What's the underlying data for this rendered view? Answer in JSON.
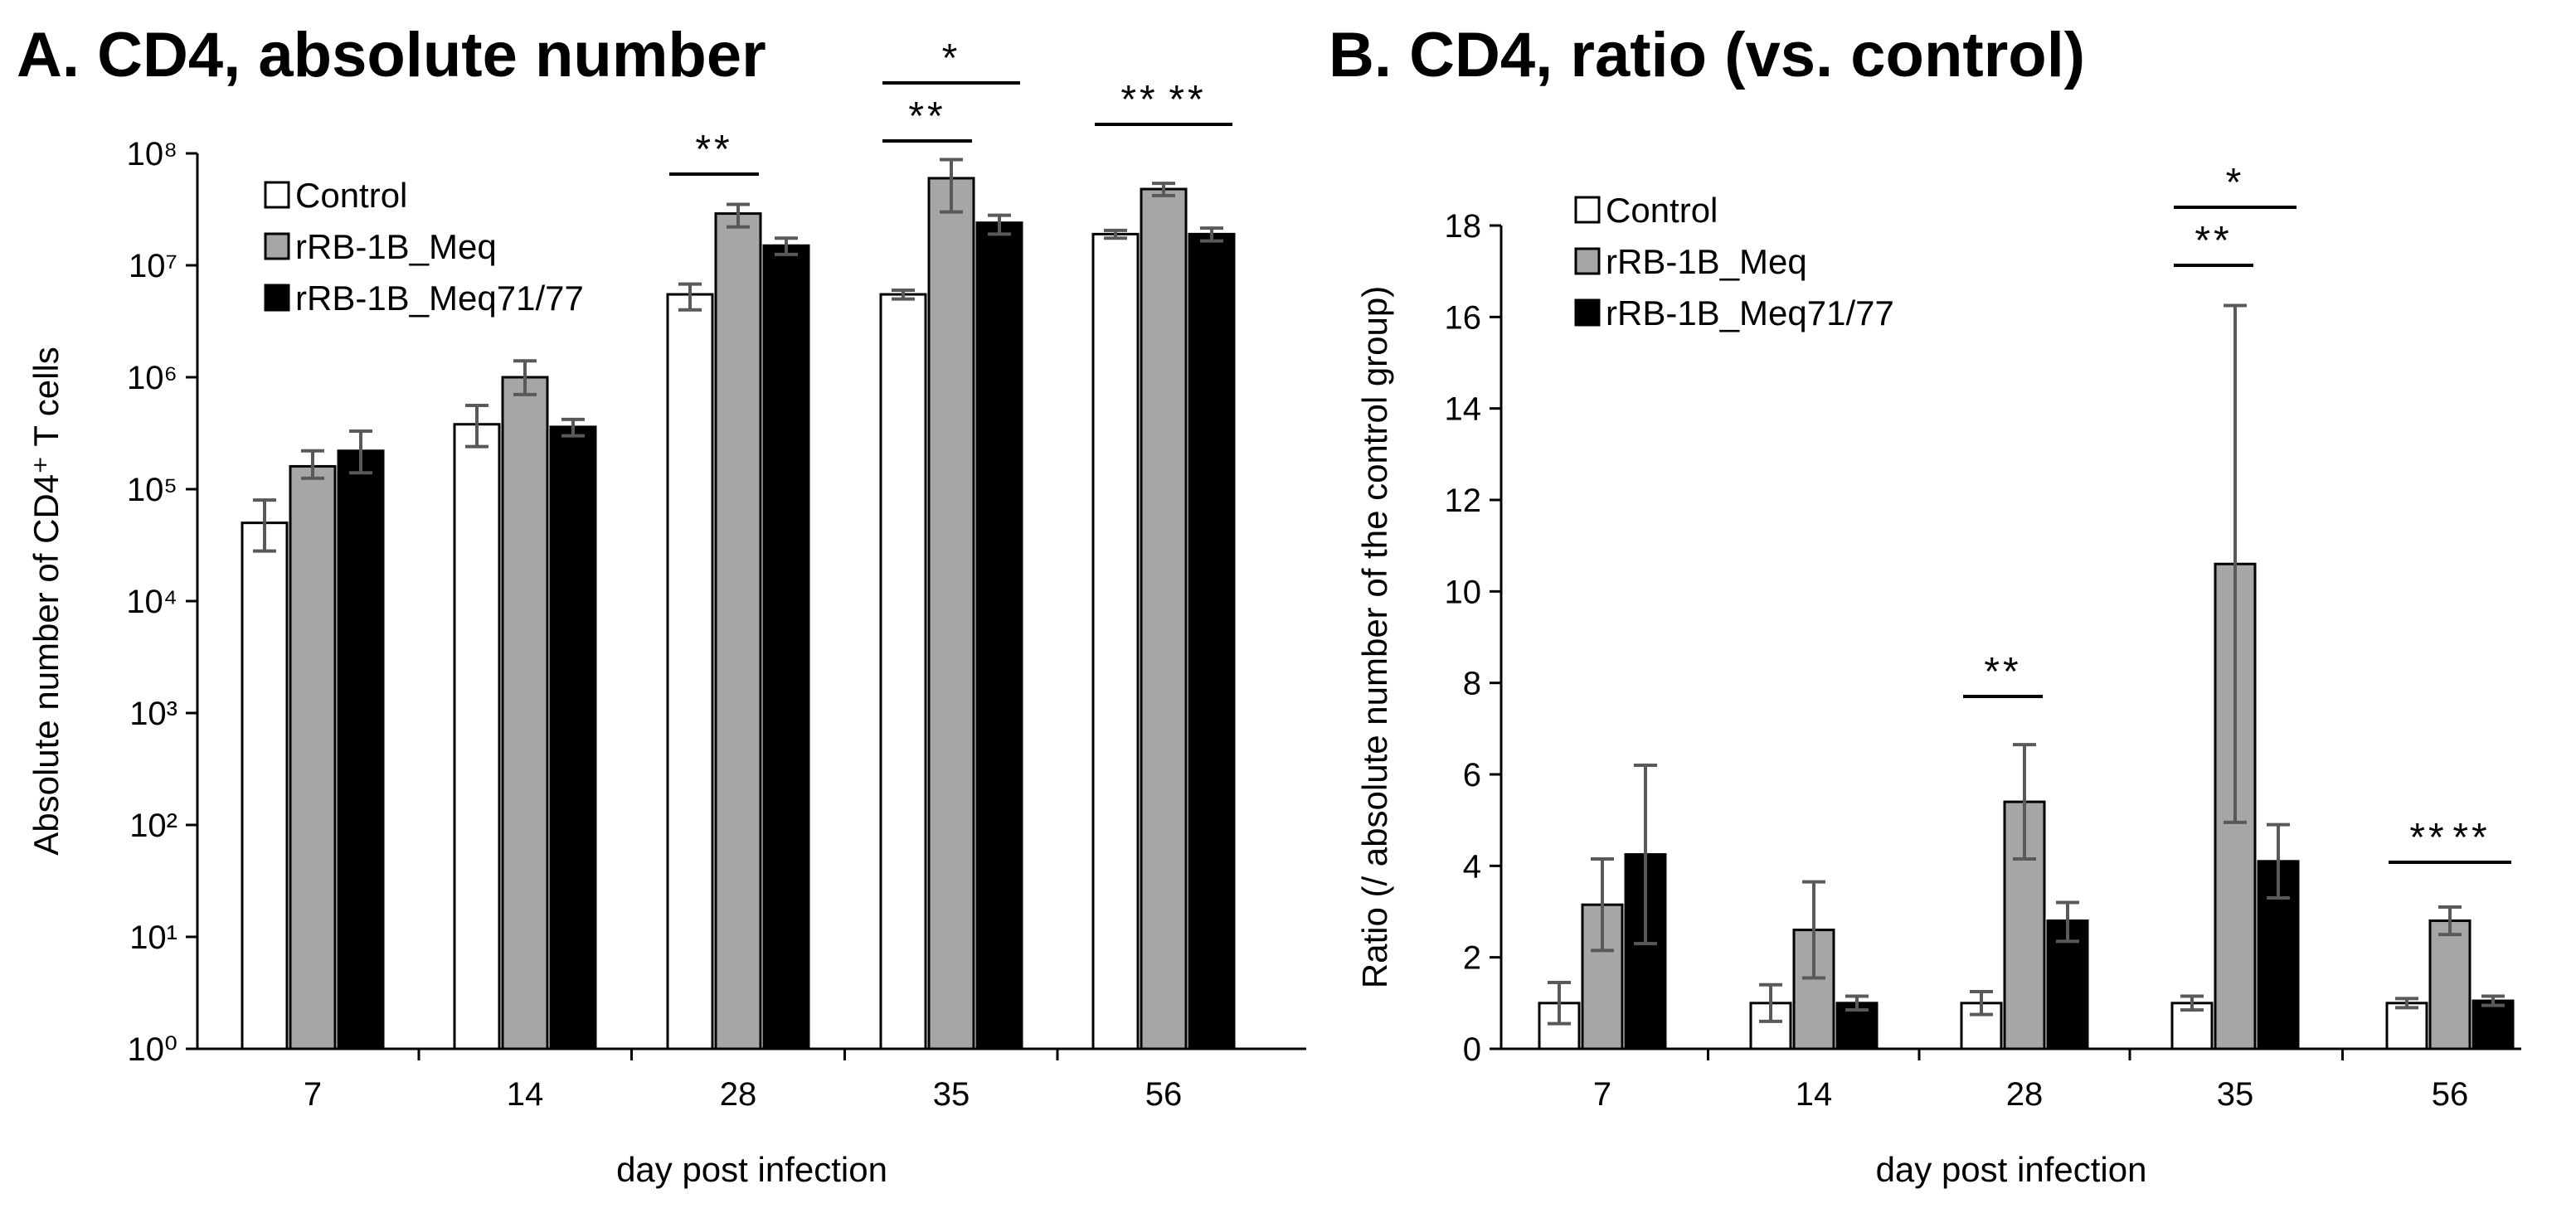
{
  "colors": {
    "control": "#ffffff",
    "meq": "#a6a6a6",
    "meq7177": "#000000",
    "axis": "#000000",
    "error": "#595959"
  },
  "chart_data": [
    {
      "type": "bar",
      "panel": "A",
      "title": "A. CD4, absolute number",
      "xlabel": "day post infection",
      "ylabel": "Absolute number of CD4⁺ T cells",
      "yscale": "log",
      "ylim": [
        1,
        100000000
      ],
      "ytick_labels": [
        "10⁰",
        "10¹",
        "10²",
        "10³",
        "10⁴",
        "10⁵",
        "10⁶",
        "10⁷",
        "10⁸"
      ],
      "categories": [
        "7",
        "14",
        "28",
        "35",
        "56"
      ],
      "legend": [
        "Control",
        "rRB-1B_Meq",
        "rRB-1B_Meq71/77"
      ],
      "legend_position": "top-left",
      "series": [
        {
          "name": "Control",
          "key": "control",
          "values": [
            50000,
            380000,
            5500000,
            5500000,
            19000000
          ],
          "err_low": [
            28000,
            240000,
            4000000,
            5000000,
            17500000
          ],
          "err_high": [
            80000,
            560000,
            6800000,
            6000000,
            20500000
          ]
        },
        {
          "name": "rRB-1B_Meq",
          "key": "meq",
          "values": [
            160000,
            1000000,
            29000000,
            60000000,
            48000000
          ],
          "err_low": [
            125000,
            700000,
            22000000,
            30000000,
            42000000
          ],
          "err_high": [
            220000,
            1400000,
            35000000,
            88000000,
            54000000
          ]
        },
        {
          "name": "rRB-1B_Meq71/77",
          "key": "meq7177",
          "values": [
            220000,
            360000,
            15000000,
            24000000,
            19000000
          ],
          "err_low": [
            140000,
            300000,
            12500000,
            19000000,
            16500000
          ],
          "err_high": [
            330000,
            420000,
            17500000,
            28000000,
            21500000
          ]
        }
      ],
      "significance": [
        {
          "label": "**",
          "category": "28",
          "from": "Control",
          "to": "rRB-1B_Meq",
          "level": 0
        },
        {
          "label": "**",
          "category": "35",
          "from": "Control",
          "to": "rRB-1B_Meq",
          "level": 0
        },
        {
          "label": "*",
          "category": "35",
          "from": "Control",
          "to": "rRB-1B_Meq71/77",
          "level": 1
        },
        {
          "label": "**",
          "category": "56",
          "from": "Control",
          "to": "rRB-1B_Meq",
          "level": 0
        },
        {
          "label": "**",
          "category": "56",
          "from": "rRB-1B_Meq",
          "to": "rRB-1B_Meq71/77",
          "level": 0
        }
      ]
    },
    {
      "type": "bar",
      "panel": "B",
      "title": "B. CD4, ratio (vs. control)",
      "xlabel": "day post infection",
      "ylabel": "Ratio (/ absolute number of the control group)",
      "yscale": "linear",
      "ylim": [
        0,
        18
      ],
      "ytick_labels": [
        "0",
        "2",
        "4",
        "6",
        "8",
        "10",
        "12",
        "14",
        "16",
        "18"
      ],
      "categories": [
        "7",
        "14",
        "28",
        "35",
        "56"
      ],
      "legend": [
        "Control",
        "rRB-1B_Meq",
        "rRB-1B_Meq71/77"
      ],
      "legend_position": "top-left",
      "series": [
        {
          "name": "Control",
          "key": "control",
          "values": [
            1.0,
            1.0,
            1.0,
            1.0,
            1.0
          ],
          "err_low": [
            0.55,
            0.6,
            0.75,
            0.85,
            0.9
          ],
          "err_high": [
            1.45,
            1.4,
            1.25,
            1.15,
            1.1
          ]
        },
        {
          "name": "rRB-1B_Meq",
          "key": "meq",
          "values": [
            3.15,
            2.6,
            5.4,
            10.6,
            2.8
          ],
          "err_low": [
            2.15,
            1.55,
            4.15,
            4.95,
            2.5
          ],
          "err_high": [
            4.15,
            3.65,
            6.65,
            16.25,
            3.1
          ]
        },
        {
          "name": "rRB-1B_Meq71/77",
          "key": "meq7177",
          "values": [
            4.25,
            1.0,
            2.8,
            4.1,
            1.05
          ],
          "err_low": [
            2.3,
            0.85,
            2.35,
            3.3,
            0.95
          ],
          "err_high": [
            6.2,
            1.15,
            3.2,
            4.9,
            1.15
          ]
        }
      ],
      "significance": [
        {
          "label": "**",
          "category": "28",
          "from": "Control",
          "to": "rRB-1B_Meq",
          "level": 0
        },
        {
          "label": "**",
          "category": "35",
          "from": "Control",
          "to": "rRB-1B_Meq",
          "level": 0
        },
        {
          "label": "*",
          "category": "35",
          "from": "Control",
          "to": "rRB-1B_Meq71/77",
          "level": 1
        },
        {
          "label": "**",
          "category": "56",
          "from": "Control",
          "to": "rRB-1B_Meq",
          "level": 0
        },
        {
          "label": "**",
          "category": "56",
          "from": "rRB-1B_Meq",
          "to": "rRB-1B_Meq71/77",
          "level": 0
        }
      ]
    }
  ]
}
